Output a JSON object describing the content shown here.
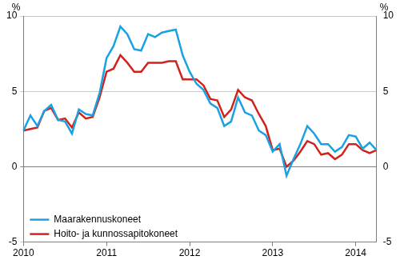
{
  "chart_data": {
    "type": "line",
    "ylabel": "%",
    "categories": [
      "2010",
      null,
      null,
      null,
      null,
      null,
      null,
      null,
      null,
      null,
      null,
      null,
      "2011",
      null,
      null,
      null,
      null,
      null,
      null,
      null,
      null,
      null,
      null,
      null,
      "2012",
      null,
      null,
      null,
      null,
      null,
      null,
      null,
      null,
      null,
      null,
      null,
      "2013",
      null,
      null,
      null,
      null,
      null,
      null,
      null,
      null,
      null,
      null,
      null,
      "2014",
      null,
      null,
      null
    ],
    "series": [
      {
        "name": "Maarakennuskoneet",
        "color": "#1ba1e2",
        "values": [
          2.4,
          3.4,
          2.7,
          3.7,
          4.1,
          3.1,
          3.0,
          2.2,
          3.8,
          3.5,
          3.4,
          4.9,
          7.2,
          8.0,
          9.3,
          8.8,
          7.8,
          7.7,
          8.8,
          8.6,
          8.9,
          9.0,
          9.1,
          7.4,
          6.3,
          5.5,
          5.1,
          4.2,
          3.9,
          2.7,
          3.0,
          4.6,
          3.6,
          3.4,
          2.4,
          2.1,
          1.0,
          1.5,
          -0.6,
          0.5,
          1.5,
          2.7,
          2.2,
          1.5,
          1.5,
          1.0,
          1.3,
          2.1,
          2.0,
          1.2,
          1.6,
          1.1
        ]
      },
      {
        "name": "Hoito- ja kunnossapitokoneet",
        "color": "#d1221c",
        "values": [
          2.4,
          2.5,
          2.6,
          3.7,
          3.9,
          3.1,
          3.2,
          2.6,
          3.6,
          3.2,
          3.3,
          4.6,
          6.3,
          6.5,
          7.4,
          6.9,
          6.3,
          6.3,
          6.9,
          6.9,
          6.9,
          7.0,
          7.0,
          5.8,
          5.8,
          5.8,
          5.4,
          4.5,
          4.4,
          3.3,
          3.8,
          5.1,
          4.6,
          4.4,
          3.5,
          2.7,
          1.1,
          1.2,
          0.0,
          0.4,
          1.0,
          1.7,
          1.5,
          0.8,
          0.9,
          0.5,
          0.8,
          1.5,
          1.5,
          1.1,
          0.9,
          1.1
        ]
      }
    ],
    "ylim": [
      -5,
      10
    ],
    "yticks": [
      -5,
      0,
      5,
      10
    ],
    "grid": true,
    "legend": "lower left",
    "line_style": "solid"
  }
}
